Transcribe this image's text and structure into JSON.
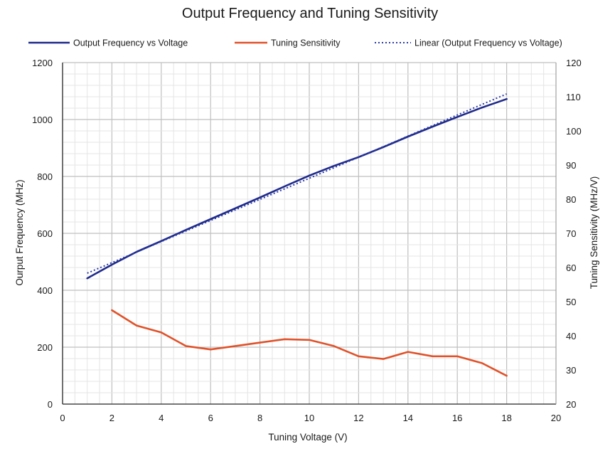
{
  "chart_data": {
    "type": "line",
    "title": "Output Frequency and Tuning Sensitivity",
    "xlabel": "Tuning Voltage (V)",
    "ylabel": "Ourput Frequency (MHz)",
    "y2label": "Tuning Sensitivity (MHz/V)",
    "xlim": [
      0,
      20
    ],
    "ylim": [
      0,
      1200
    ],
    "y2lim": [
      20,
      120
    ],
    "xticks": [
      0,
      2,
      4,
      6,
      8,
      10,
      12,
      14,
      16,
      18,
      20
    ],
    "yticks": [
      0,
      200,
      400,
      600,
      800,
      1000,
      1200
    ],
    "y2ticks": [
      20,
      30,
      40,
      50,
      60,
      70,
      80,
      90,
      100,
      110,
      120
    ],
    "grid": true,
    "legend_position": "top",
    "series": [
      {
        "name": "Output Frequency vs Voltage",
        "axis": "left",
        "color": "#1f2a8a",
        "style": "solid",
        "x": [
          1,
          2,
          3,
          4,
          5,
          6,
          7,
          8,
          9,
          10,
          11,
          12,
          13,
          14,
          15,
          16,
          17,
          18
        ],
        "y": [
          442,
          490,
          535,
          573,
          612,
          650,
          688,
          726,
          765,
          803,
          837,
          868,
          903,
          940,
          975,
          1009,
          1042,
          1072
        ]
      },
      {
        "name": "Tuning Sensitivity",
        "axis": "right",
        "color": "#e0522a",
        "style": "solid",
        "x": [
          2,
          3,
          4,
          5,
          6,
          7,
          8,
          9,
          10,
          11,
          12,
          13,
          14,
          15,
          16,
          17,
          18
        ],
        "y": [
          47.5,
          43,
          41,
          37,
          36,
          37,
          38,
          39,
          38.8,
          37,
          34,
          33.2,
          35.3,
          34,
          34,
          32,
          28.3
        ]
      },
      {
        "name": "Linear (Output Frequency vs Voltage)",
        "axis": "left",
        "color": "#2b3aa6",
        "style": "dotted",
        "x": [
          1,
          18
        ],
        "y": [
          460,
          1090
        ]
      }
    ]
  }
}
